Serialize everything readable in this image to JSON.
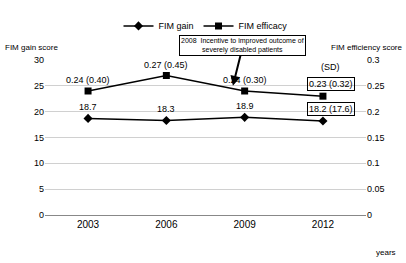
{
  "chart_data": {
    "type": "line",
    "categories": [
      "2003",
      "2006",
      "2009",
      "2012"
    ],
    "x_label": "years",
    "y_label": "FIM gain score",
    "y2_label": "FIM efficiency score",
    "series": [
      {
        "name": "FIM gain",
        "values": [
          18.7,
          18.3,
          18.9,
          18.2
        ],
        "value_labels": [
          "18.7",
          "18.3",
          "18.9",
          "18.2 (17.6)"
        ],
        "marker": "diamond",
        "color": "#000000"
      },
      {
        "name": "FIM efficacy",
        "axis": "y2",
        "values": [
          0.24,
          0.27,
          0.24,
          0.23
        ],
        "value_labels": [
          "0.24 (0.40)",
          "0.27 (0.45)",
          "0.24 (0.30)",
          "0.23 (0.32)"
        ],
        "marker": "square",
        "color": "#000000"
      }
    ],
    "ylim": [
      0,
      30
    ],
    "yticks": [
      0,
      5,
      10,
      15,
      20,
      25,
      30
    ],
    "y2lim": [
      0,
      0.3
    ],
    "y2ticks": [
      0,
      0.05,
      0.1,
      0.15,
      0.2,
      0.25,
      0.3
    ],
    "grid": true,
    "legend": "top",
    "data_labels": true,
    "annotations": [
      "2008  Incentive to improved outcome of\nseverely disabled patients",
      "(SD)"
    ]
  }
}
